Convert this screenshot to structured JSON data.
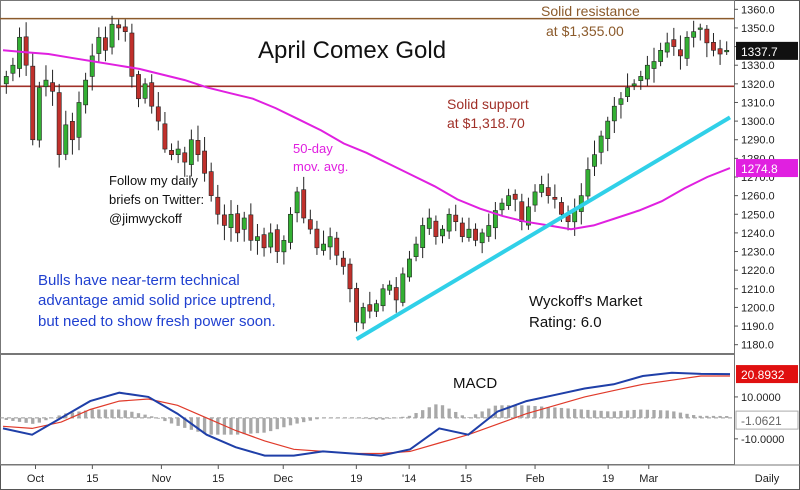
{
  "colors": {
    "up": "#33b033",
    "down": "#c0302b",
    "resistance": "#8b5a2b",
    "support": "#a03028",
    "ma": "#e020e0",
    "trend": "#30d0e8",
    "macd_line": "#1f3fa8",
    "signal_line": "#e03a2a",
    "histogram": "#a8a8a8",
    "price_tag": "#111111",
    "ma_tag": "#e020e0",
    "macd_tag": "#e01010",
    "blue_text": "#2040d0"
  },
  "chart_data": {
    "type": "candlestick",
    "title": "April Comex Gold",
    "price_axis": {
      "ylim": [
        1175,
        1365
      ],
      "ticks": [
        1180,
        1190,
        1200,
        1210,
        1220,
        1230,
        1240,
        1250,
        1260,
        1270,
        1280,
        1290,
        1300,
        1310,
        1320,
        1330,
        1340,
        1350,
        1360
      ],
      "tick_labels": [
        "1180.0",
        "1190.0",
        "1200.0",
        "1210.0",
        "1220.0",
        "1230.0",
        "1240.0",
        "1250.0",
        "1260.0",
        "1270.0",
        "1280.0",
        "1290.0",
        "1300.0",
        "1310.0",
        "1320.0",
        "1330.0",
        "1340.0",
        "1350.0",
        "1360.0"
      ]
    },
    "x_labels": [
      "Oct",
      "15",
      "Nov",
      "15",
      "Dec",
      "19",
      "'14",
      "15",
      "Feb",
      "19",
      "Mar"
    ],
    "x_label_dates": [
      "2013-10-01",
      "2013-10-15",
      "2013-11-01",
      "2013-11-15",
      "2013-12-01",
      "2013-12-19",
      "2014-01-01",
      "2014-01-15",
      "2014-02-01",
      "2014-02-19",
      "2014-03-01"
    ],
    "x_extra_label": "Daily",
    "trading_day_count": 128,
    "last_price_tag": "1337.7",
    "ma_tag": "1274.8",
    "closes": [
      1324,
      1330,
      1345,
      1330,
      1290,
      1318,
      1322,
      1316,
      1282,
      1298,
      1290,
      1310,
      1322,
      1335,
      1345,
      1338,
      1352,
      1350,
      1348,
      1324,
      1312,
      1320,
      1308,
      1300,
      1285,
      1282,
      1285,
      1278,
      1290,
      1282,
      1272,
      1260,
      1250,
      1244,
      1250,
      1240,
      1248,
      1236,
      1238,
      1232,
      1240,
      1230,
      1236,
      1250,
      1262,
      1248,
      1242,
      1232,
      1234,
      1238,
      1228,
      1222,
      1210,
      1192,
      1200,
      1198,
      1202,
      1210,
      1212,
      1204,
      1218,
      1226,
      1234,
      1244,
      1248,
      1238,
      1242,
      1250,
      1246,
      1238,
      1242,
      1236,
      1240,
      1244,
      1252,
      1256,
      1260,
      1258,
      1246,
      1254,
      1262,
      1266,
      1260,
      1258,
      1250,
      1246,
      1252,
      1260,
      1274,
      1282,
      1292,
      1300,
      1308,
      1312,
      1318,
      1320,
      1324,
      1330,
      1332,
      1338,
      1342,
      1340,
      1335,
      1345,
      1348,
      1350,
      1342,
      1338,
      1336,
      1338
    ],
    "ma50": [
      1338,
      1337,
      1336,
      1334,
      1332,
      1330,
      1328,
      1325,
      1322,
      1318,
      1315,
      1312,
      1307,
      1301,
      1295,
      1288,
      1283,
      1277,
      1271,
      1265,
      1258,
      1253,
      1249,
      1246,
      1244,
      1242,
      1244,
      1248,
      1252,
      1257,
      1264,
      1270,
      1274.8
    ],
    "macd": {
      "axis_ticks": [
        10,
        -10
      ],
      "tick_labels": [
        "10.0000",
        "-10.0000"
      ],
      "ylim": [
        -22,
        30
      ],
      "macd_tag": "20.8932",
      "hist_tag": "-1.0621",
      "label": "MACD",
      "macd_line": [
        -5,
        -8,
        0,
        8,
        12,
        10,
        2,
        -8,
        -14,
        -18,
        -18,
        -16,
        -17,
        -18,
        -15,
        -5,
        -8,
        3,
        8,
        11,
        14,
        16,
        20,
        21.5,
        21,
        20.9
      ],
      "signal_line": [
        -4,
        -5,
        -2,
        4,
        8,
        9,
        6,
        0,
        -6,
        -11,
        -15,
        -16,
        -17,
        -17,
        -16,
        -12,
        -8,
        -3,
        2,
        6,
        10,
        13,
        16,
        18,
        20,
        20
      ]
    }
  },
  "levels": {
    "resistance": 1355,
    "support": 1318.7
  },
  "annotations": {
    "resistance_line1": "Solid resistance",
    "resistance_line2": "at $1,355.00",
    "support_line1": "Solid support",
    "support_line2": "at $1,318.70",
    "ma_line1": "50-day",
    "ma_line2": "mov. avg.",
    "twitter_line1": "Follow my daily",
    "twitter_line2": "briefs on Twitter:",
    "twitter_line3": "@jimwyckoff",
    "bulls_line1": "Bulls have near-term technical",
    "bulls_line2": "advantage amid solid price uptrend,",
    "bulls_line3": "but need to show fresh power soon.",
    "rating_line1": "Wyckoff's Market",
    "rating_line2": "Rating: 6.0"
  }
}
